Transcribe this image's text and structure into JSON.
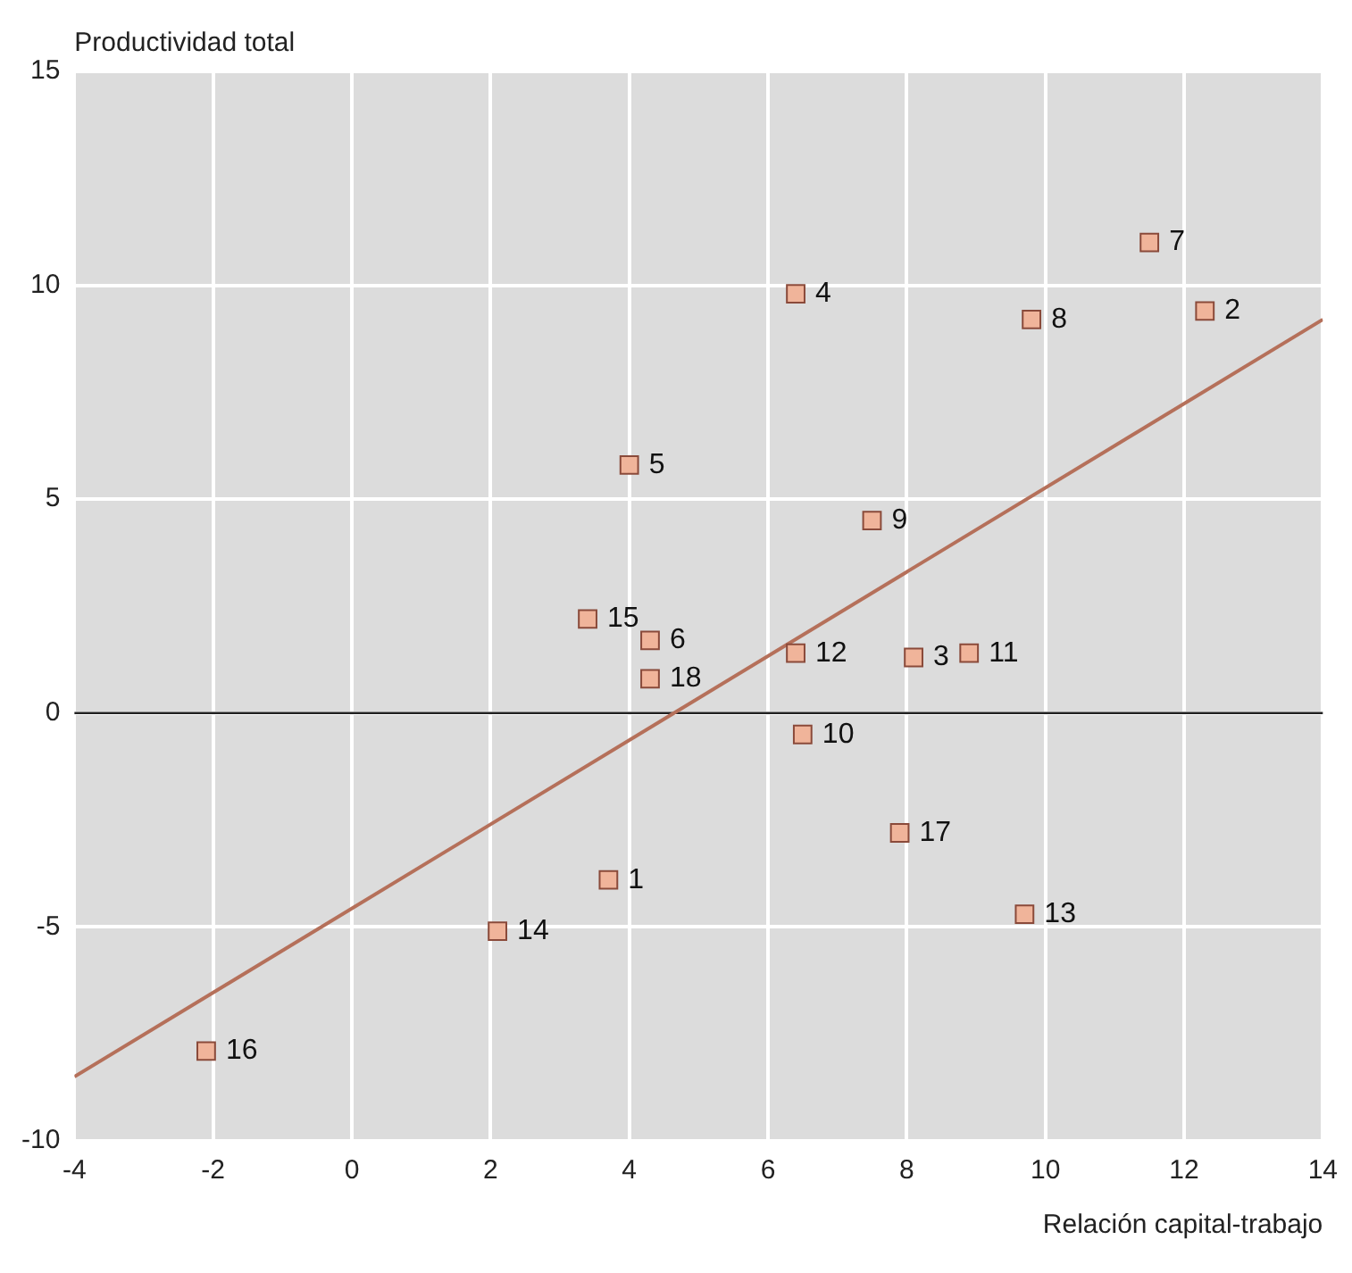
{
  "chart_data": {
    "type": "scatter",
    "xlabel": "Relación capital-trabajo",
    "ylabel": "Productividad total",
    "xlim": [
      -4,
      14
    ],
    "xticks": [
      -4,
      -2,
      0,
      2,
      4,
      6,
      8,
      10,
      12,
      14
    ],
    "ylim": [
      -10,
      15
    ],
    "yticks": [
      -10,
      -5,
      0,
      5,
      10,
      15
    ],
    "grid": true,
    "legend": false,
    "ref_lines": [
      {
        "axis": "y",
        "value": 0,
        "color": "#222222"
      }
    ],
    "series": [
      {
        "color": "#f0b49a",
        "marker": "square",
        "x": [
          3.7,
          12.3,
          8.1,
          6.4,
          4.0,
          4.3,
          11.5,
          9.8,
          7.5,
          6.5,
          8.9,
          6.4,
          9.7,
          2.1,
          3.4,
          -2.1,
          7.9,
          4.3
        ],
        "values": [
          -3.9,
          9.4,
          1.3,
          9.8,
          5.8,
          1.7,
          11.0,
          9.2,
          4.5,
          -0.5,
          1.4,
          1.4,
          -4.7,
          -5.1,
          2.2,
          -7.9,
          -2.8,
          0.8
        ]
      },
      {
        "type": "line",
        "color": "#b5705a",
        "marker": "none",
        "x": [
          -4,
          14
        ],
        "values": [
          -8.5,
          9.2
        ]
      }
    ],
    "annotations": [
      {
        "text": "1",
        "x": 3.7,
        "y": -3.9
      },
      {
        "text": "2",
        "x": 12.3,
        "y": 9.4
      },
      {
        "text": "3",
        "x": 8.1,
        "y": 1.3
      },
      {
        "text": "4",
        "x": 6.4,
        "y": 9.8
      },
      {
        "text": "5",
        "x": 4.0,
        "y": 5.8
      },
      {
        "text": "6",
        "x": 4.3,
        "y": 1.7
      },
      {
        "text": "7",
        "x": 11.5,
        "y": 11.0
      },
      {
        "text": "8",
        "x": 9.8,
        "y": 9.2
      },
      {
        "text": "9",
        "x": 7.5,
        "y": 4.5
      },
      {
        "text": "10",
        "x": 6.5,
        "y": -0.5
      },
      {
        "text": "11",
        "x": 8.9,
        "y": 1.4
      },
      {
        "text": "12",
        "x": 6.4,
        "y": 1.4
      },
      {
        "text": "13",
        "x": 9.7,
        "y": -4.7
      },
      {
        "text": "14",
        "x": 2.1,
        "y": -5.1
      },
      {
        "text": "15",
        "x": 3.4,
        "y": 2.2
      },
      {
        "text": "16",
        "x": -2.1,
        "y": -7.9
      },
      {
        "text": "17",
        "x": 7.9,
        "y": -2.8
      },
      {
        "text": "18",
        "x": 4.3,
        "y": 0.8
      }
    ]
  }
}
